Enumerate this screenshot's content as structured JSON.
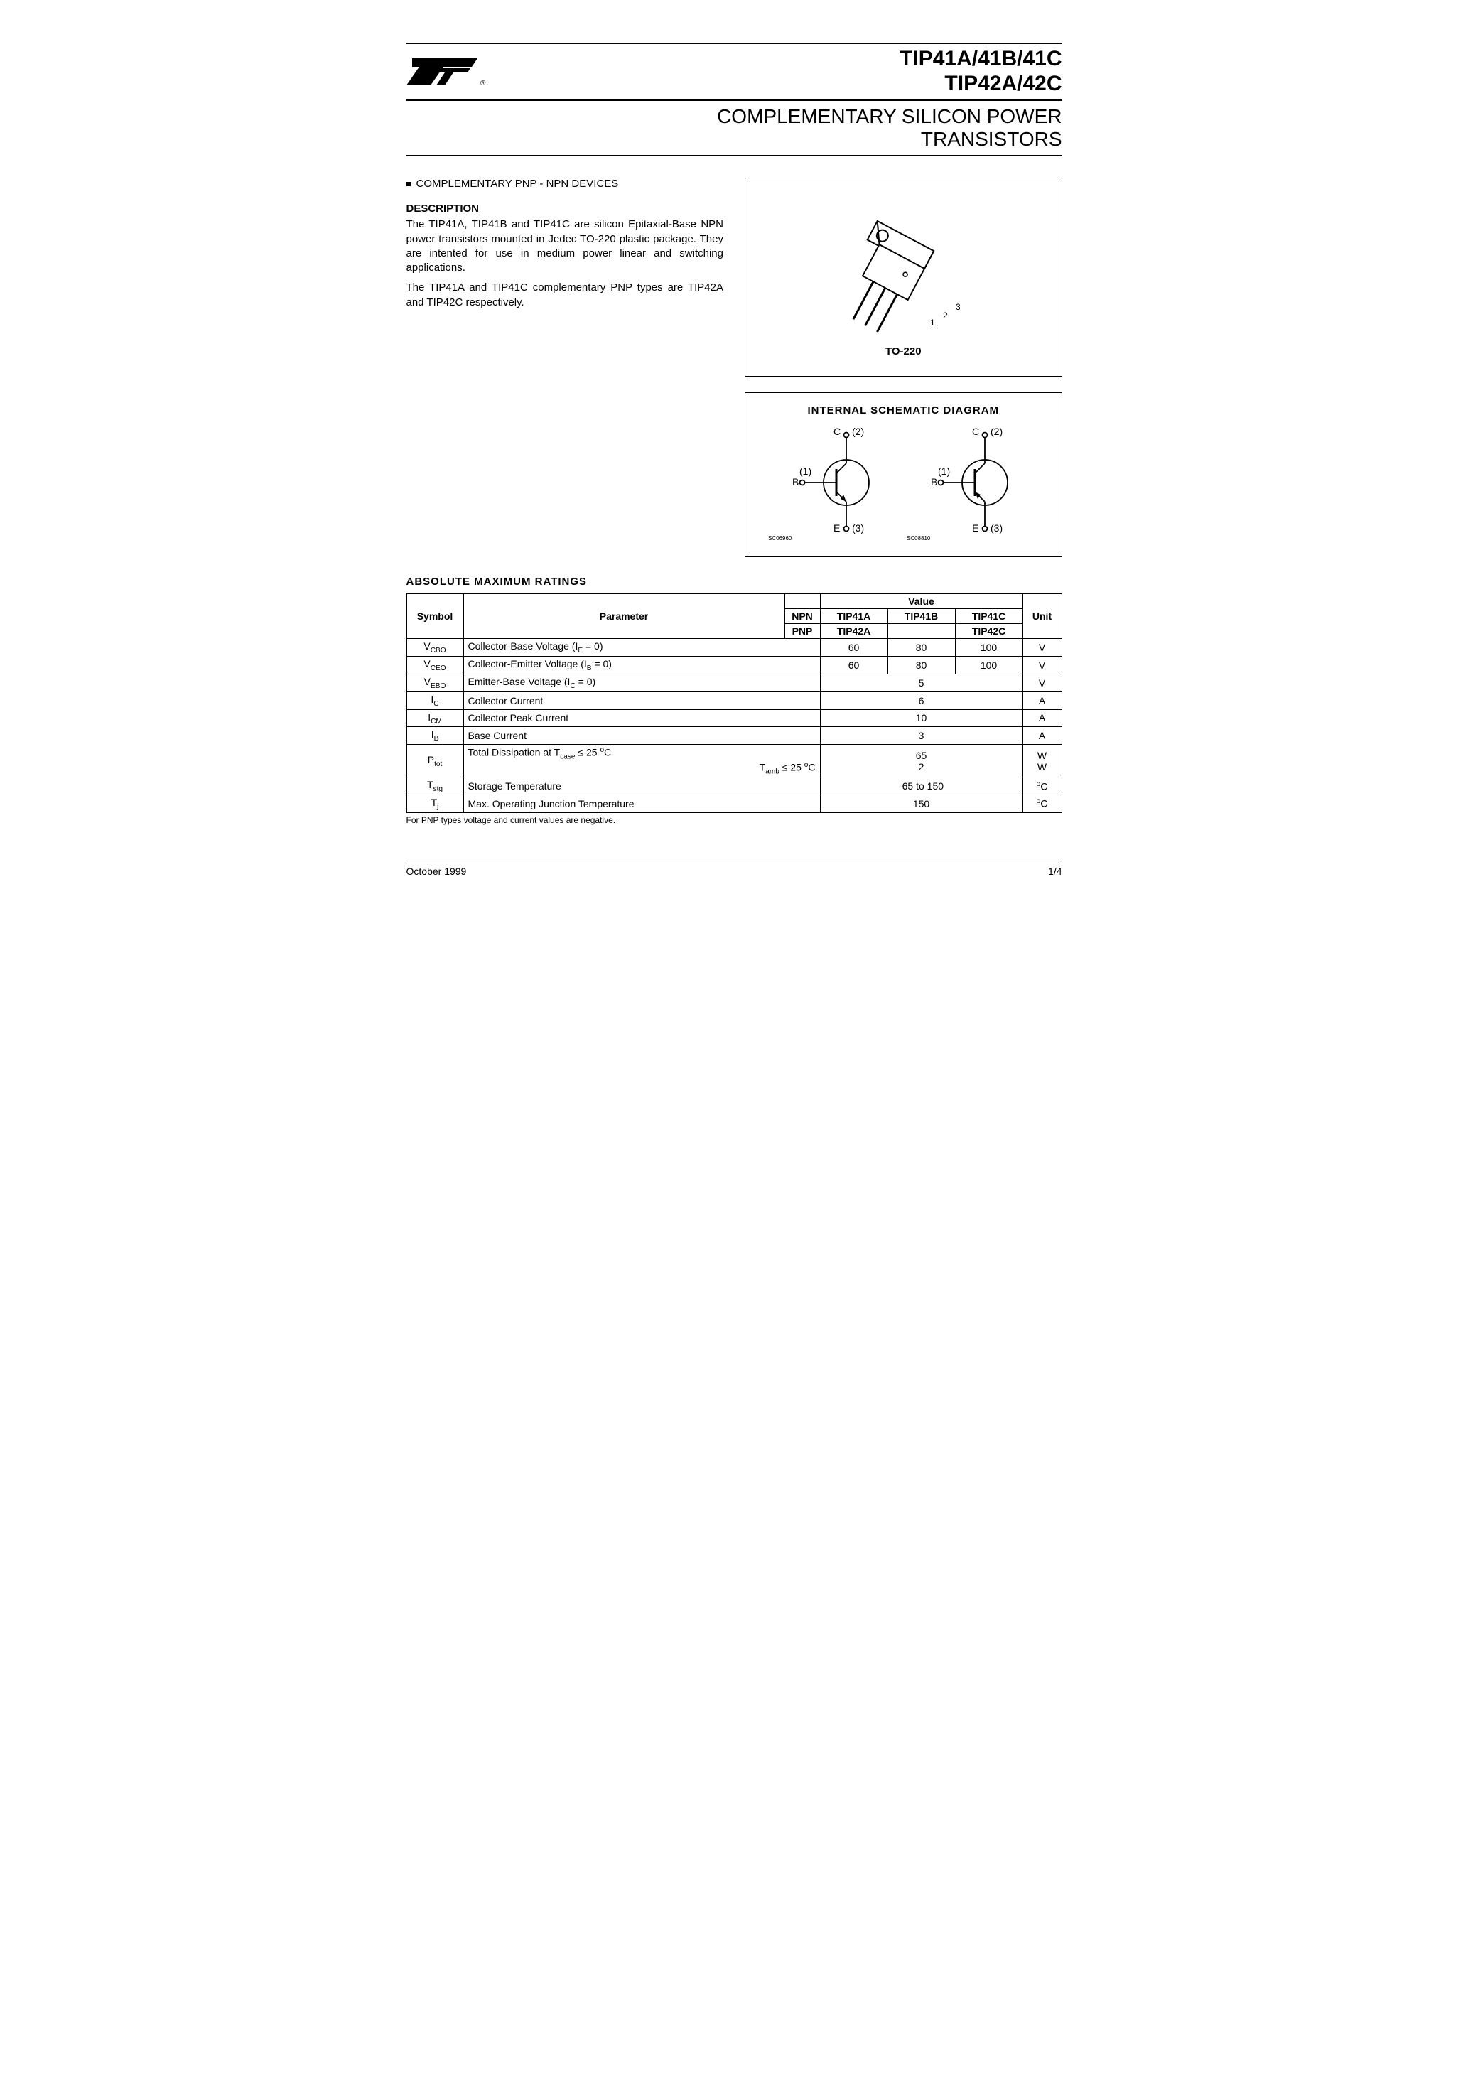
{
  "header": {
    "part_line1": "TIP41A/41B/41C",
    "part_line2": "TIP42A/42C",
    "subtitle_line1": "COMPLEMENTARY SILICON POWER",
    "subtitle_line2": "TRANSISTORS"
  },
  "bullet": "COMPLEMENTARY PNP - NPN DEVICES",
  "description": {
    "heading": "DESCRIPTION",
    "p1": "The TIP41A, TIP41B and TIP41C are silicon Epitaxial-Base NPN power transistors mounted in Jedec TO-220 plastic package. They are intented for use in medium power linear and switching applications.",
    "p2": "The TIP41A and TIP41C complementary PNP types are TIP42A and TIP42C respectively."
  },
  "package": {
    "label": "TO-220",
    "pin1": "1",
    "pin2": "2",
    "pin3": "3"
  },
  "schematic": {
    "title": "INTERNAL  SCHEMATIC  DIAGRAM",
    "c_label": "C",
    "b_label": "B",
    "e_label": "E",
    "pin1": "(1)",
    "pin2": "(2)",
    "pin3": "(3)",
    "code_npn": "SC06960",
    "code_pnp": "SC08810"
  },
  "ratings": {
    "heading": "ABSOLUTE  MAXIMUM  RATINGS",
    "columns": {
      "symbol": "Symbol",
      "parameter": "Parameter",
      "value": "Value",
      "unit": "Unit"
    },
    "type_labels": {
      "npn": "NPN",
      "pnp": "PNP"
    },
    "variant_headers": {
      "a_npn": "TIP41A",
      "b_npn": "TIP41B",
      "c_npn": "TIP41C",
      "a_pnp": "TIP42A",
      "c_pnp": "TIP42C"
    },
    "rows": [
      {
        "sym_main": "V",
        "sym_sub": "CBO",
        "param": "Collector-Base Voltage (I",
        "param_sub": "E",
        "param_tail": " = 0)",
        "v_a": "60",
        "v_b": "80",
        "v_c": "100",
        "unit": "V",
        "span": "3col"
      },
      {
        "sym_main": "V",
        "sym_sub": "CEO",
        "param": "Collector-Emitter Voltage (I",
        "param_sub": "B",
        "param_tail": " = 0)",
        "v_a": "60",
        "v_b": "80",
        "v_c": "100",
        "unit": "V",
        "span": "3col"
      },
      {
        "sym_main": "V",
        "sym_sub": "EBO",
        "param": "Emitter-Base Voltage (I",
        "param_sub": "C",
        "param_tail": " = 0)",
        "v": "5",
        "unit": "V",
        "span": "full"
      },
      {
        "sym_main": "I",
        "sym_sub": "C",
        "param": "Collector Current",
        "v": "6",
        "unit": "A",
        "span": "full"
      },
      {
        "sym_main": "I",
        "sym_sub": "CM",
        "param": "Collector Peak Current",
        "v": "10",
        "unit": "A",
        "span": "full"
      },
      {
        "sym_main": "I",
        "sym_sub": "B",
        "param": "Base Current",
        "v": "3",
        "unit": "A",
        "span": "full"
      }
    ],
    "ptot": {
      "sym_main": "P",
      "sym_sub": "tot",
      "param1_pre": "Total Dissipation at T",
      "param1_sub": "case",
      "param1_mid": " ≤ 25 ",
      "param1_deg": "o",
      "param1_c": "C",
      "param2_pre": "T",
      "param2_sub": "amb",
      "param2_mid": " ≤ 25 ",
      "param2_deg": "o",
      "param2_c": "C",
      "v1": "65",
      "v2": "2",
      "unit1": "W",
      "unit2": "W"
    },
    "tstg": {
      "sym_main": "T",
      "sym_sub": "stg",
      "param": "Storage Temperature",
      "v": "-65 to 150",
      "unit_deg": "o",
      "unit_c": "C"
    },
    "tj": {
      "sym_main": "T",
      "sym_sub": "j",
      "param": "Max. Operating Junction Temperature",
      "v": "150",
      "unit_deg": "o",
      "unit_c": "C"
    },
    "footnote": "For PNP types voltage and current values are negative."
  },
  "footer": {
    "date": "October 1999",
    "page": "1/4"
  }
}
